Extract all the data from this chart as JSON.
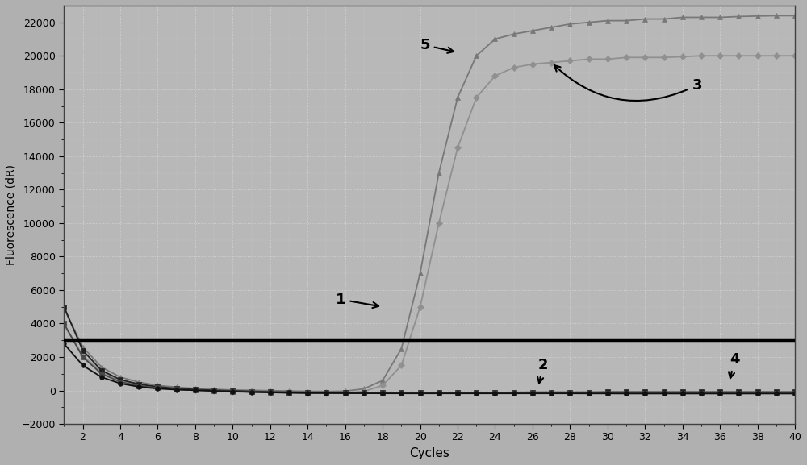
{
  "xlabel": "Cycles",
  "ylabel": "Fluorescence (dR)",
  "xlim": [
    1,
    40
  ],
  "ylim": [
    -2000,
    23000
  ],
  "yticks": [
    -2000,
    0,
    2000,
    4000,
    6000,
    8000,
    10000,
    12000,
    14000,
    16000,
    18000,
    20000,
    22000
  ],
  "xticks": [
    2,
    4,
    6,
    8,
    10,
    12,
    14,
    16,
    18,
    20,
    22,
    24,
    26,
    28,
    30,
    32,
    34,
    36,
    38,
    40
  ],
  "threshold_y": 3000,
  "background_color": "#b0b0b0",
  "plot_bg_color": "#b8b8b8",
  "grid_color": "#d8d8d8",
  "curves": [
    {
      "name": "curve_triangle_gray",
      "color": "#787878",
      "marker": "^",
      "markersize": 5,
      "linewidth": 1.3,
      "x": [
        1,
        2,
        3,
        4,
        5,
        6,
        7,
        8,
        9,
        10,
        11,
        12,
        13,
        14,
        15,
        16,
        17,
        18,
        19,
        20,
        21,
        22,
        23,
        24,
        25,
        26,
        27,
        28,
        29,
        30,
        31,
        32,
        33,
        34,
        35,
        36,
        37,
        38,
        39,
        40
      ],
      "y": [
        4900,
        2600,
        1400,
        800,
        500,
        300,
        200,
        120,
        70,
        30,
        10,
        -10,
        -30,
        -50,
        -60,
        -40,
        100,
        600,
        2500,
        7000,
        13000,
        17500,
        20000,
        21000,
        21300,
        21500,
        21700,
        21900,
        22000,
        22100,
        22100,
        22200,
        22200,
        22300,
        22300,
        22300,
        22350,
        22380,
        22400,
        22400
      ]
    },
    {
      "name": "curve_diamond_gray",
      "color": "#909090",
      "marker": "D",
      "markersize": 4,
      "linewidth": 1.3,
      "x": [
        1,
        2,
        3,
        4,
        5,
        6,
        7,
        8,
        9,
        10,
        11,
        12,
        13,
        14,
        15,
        16,
        17,
        18,
        19,
        20,
        21,
        22,
        23,
        24,
        25,
        26,
        27,
        28,
        29,
        30,
        31,
        32,
        33,
        34,
        35,
        36,
        37,
        38,
        39,
        40
      ],
      "y": [
        3900,
        2100,
        1100,
        600,
        350,
        180,
        100,
        40,
        -10,
        -50,
        -90,
        -120,
        -140,
        -160,
        -160,
        -140,
        -60,
        300,
        1500,
        5000,
        10000,
        14500,
        17500,
        18800,
        19300,
        19500,
        19600,
        19700,
        19800,
        19800,
        19900,
        19900,
        19900,
        19950,
        20000,
        20000,
        20000,
        20000,
        20000,
        20000
      ]
    },
    {
      "name": "curve_square_dark1",
      "color": "#202020",
      "marker": "s",
      "markersize": 5,
      "linewidth": 1.3,
      "x": [
        1,
        2,
        3,
        4,
        5,
        6,
        7,
        8,
        9,
        10,
        11,
        12,
        13,
        14,
        15,
        16,
        17,
        18,
        19,
        20,
        21,
        22,
        23,
        24,
        25,
        26,
        27,
        28,
        29,
        30,
        31,
        32,
        33,
        34,
        35,
        36,
        37,
        38,
        39,
        40
      ],
      "y": [
        5000,
        2400,
        1200,
        650,
        380,
        220,
        120,
        60,
        10,
        -20,
        -50,
        -80,
        -100,
        -110,
        -110,
        -110,
        -110,
        -110,
        -110,
        -110,
        -110,
        -110,
        -110,
        -110,
        -110,
        -100,
        -100,
        -100,
        -100,
        -90,
        -90,
        -90,
        -90,
        -90,
        -90,
        -90,
        -90,
        -90,
        -90,
        -90
      ]
    },
    {
      "name": "curve_square_dark2",
      "color": "#484848",
      "marker": "s",
      "markersize": 4,
      "linewidth": 1.3,
      "x": [
        1,
        2,
        3,
        4,
        5,
        6,
        7,
        8,
        9,
        10,
        11,
        12,
        13,
        14,
        15,
        16,
        17,
        18,
        19,
        20,
        21,
        22,
        23,
        24,
        25,
        26,
        27,
        28,
        29,
        30,
        31,
        32,
        33,
        34,
        35,
        36,
        37,
        38,
        39,
        40
      ],
      "y": [
        4000,
        2000,
        1000,
        520,
        280,
        150,
        70,
        20,
        -20,
        -55,
        -85,
        -110,
        -130,
        -145,
        -150,
        -155,
        -155,
        -160,
        -160,
        -160,
        -165,
        -165,
        -165,
        -165,
        -165,
        -165,
        -160,
        -160,
        -155,
        -155,
        -150,
        -150,
        -150,
        -150,
        -150,
        -150,
        -150,
        -150,
        -150,
        -150
      ]
    },
    {
      "name": "curve_circle_dark",
      "color": "#101010",
      "marker": "o",
      "markersize": 4,
      "linewidth": 1.3,
      "x": [
        1,
        2,
        3,
        4,
        5,
        6,
        7,
        8,
        9,
        10,
        11,
        12,
        13,
        14,
        15,
        16,
        17,
        18,
        19,
        20,
        21,
        22,
        23,
        24,
        25,
        26,
        27,
        28,
        29,
        30,
        31,
        32,
        33,
        34,
        35,
        36,
        37,
        38,
        39,
        40
      ],
      "y": [
        2800,
        1500,
        800,
        420,
        220,
        110,
        50,
        10,
        -30,
        -65,
        -95,
        -120,
        -140,
        -155,
        -160,
        -165,
        -170,
        -172,
        -175,
        -175,
        -175,
        -175,
        -175,
        -175,
        -175,
        -175,
        -175,
        -175,
        -180,
        -180,
        -185,
        -185,
        -185,
        -185,
        -185,
        -185,
        -185,
        -185,
        -185,
        -185
      ]
    }
  ]
}
